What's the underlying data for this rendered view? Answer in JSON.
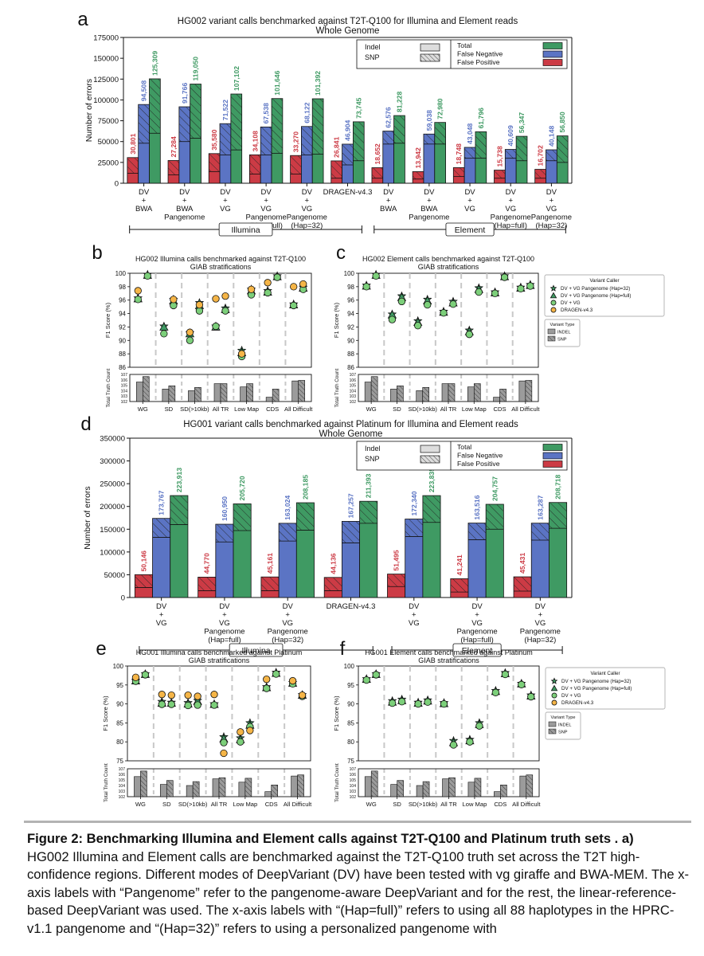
{
  "colors": {
    "fp": "#cc3b45",
    "fn": "#5b74c4",
    "total": "#3f9a63",
    "vgph": "#3f9a63",
    "vg": "#7ccf7a",
    "dragen": "#f5b547",
    "indel": "#9b9b9b",
    "snp": "#9b9b9b"
  },
  "caption": {
    "title": "Figure 2: Benchmarking Illumina and Element calls against T2T-Q100 and Platinum truth sets . a)",
    "body": "HG002 Illumina and Element calls are benchmarked against the T2T-Q100 truth set across the T2T high-confidence regions. Different modes of DeepVariant (DV) have been tested with vg giraffe and BWA-MEM. The x-axis labels with “Pangenome” refer to the pangenome-aware DeepVariant and for the rest, the linear-reference-based DeepVariant was used. The x-axis labels with “(Hap=full)” refers to using all 88 haplotypes in the HPRC-v1.1 pangenome and “(Hap=32)” refers to using a personalized pangenome with"
  },
  "chart_data": [
    {
      "panel": "a",
      "type": "bar",
      "title": "HG002 variant calls benchmarked against T2T-Q100 for Illumina and Element reads",
      "subtitle": "Whole Genome",
      "ylabel": "Number of errors",
      "ylim": [
        0,
        175000
      ],
      "yticks": [
        0,
        25000,
        50000,
        75000,
        100000,
        125000,
        150000,
        175000
      ],
      "categories": [
        [
          "DV",
          "+",
          "BWA"
        ],
        [
          "DV",
          "+",
          "BWA",
          "Pangenome"
        ],
        [
          "DV",
          "+",
          "VG"
        ],
        [
          "DV",
          "+",
          "VG",
          "Pangenome",
          "(Hap=full)"
        ],
        [
          "DV",
          "+",
          "VG",
          "Pangenome",
          "(Hap=32)"
        ],
        [
          "DRAGEN-v4.3"
        ],
        [
          "DV",
          "+",
          "BWA"
        ],
        [
          "DV",
          "+",
          "BWA",
          "Pangenome"
        ],
        [
          "DV",
          "+",
          "VG"
        ],
        [
          "DV",
          "+",
          "VG",
          "Pangenome",
          "(Hap=full)"
        ],
        [
          "DV",
          "+",
          "VG",
          "Pangenome",
          "(Hap=32)"
        ]
      ],
      "groups": [
        {
          "name": "Illumina",
          "from": 0,
          "to": 5
        },
        {
          "name": "Element",
          "from": 6,
          "to": 10
        }
      ],
      "legend": {
        "placement": "top-right",
        "types": [
          "Indel",
          "SNP"
        ],
        "metrics": [
          "Total",
          "False Negative",
          "False Positive"
        ]
      },
      "series": [
        {
          "name": "False Positive",
          "values": [
            30801,
            27284,
            35580,
            34108,
            33270,
            26841,
            18652,
            13942,
            18748,
            15738,
            16702
          ],
          "labels": [
            "30,801",
            "27,284",
            "35,580",
            "34,108",
            "33,270",
            "26,841",
            "18,652",
            "13,942",
            "18,748",
            "15,738",
            "16,702"
          ],
          "indel": [
            12000,
            10000,
            14000,
            11000,
            11000,
            6000,
            6000,
            5000,
            8000,
            6000,
            6000
          ]
        },
        {
          "name": "False Negative",
          "values": [
            94508,
            91766,
            71522,
            67538,
            68122,
            46904,
            62576,
            59038,
            43048,
            40609,
            40148
          ],
          "labels": [
            "94,508",
            "91,766",
            "71,522",
            "67,538",
            "68,122",
            "46,904",
            "62,576",
            "59,038",
            "43,048",
            "40,609",
            "40,148"
          ],
          "indel": [
            48000,
            50000,
            34000,
            34000,
            34000,
            22000,
            47000,
            47000,
            30000,
            30000,
            27000
          ]
        },
        {
          "name": "Total",
          "values": [
            125309,
            119050,
            107102,
            101646,
            101392,
            73745,
            81228,
            72980,
            61796,
            56347,
            56850
          ],
          "labels": [
            "125,309",
            "119,050",
            "107,102",
            "101,646",
            "101,392",
            "73,745",
            "81,228",
            "72,980",
            "61,796",
            "56,347",
            "56,850"
          ],
          "indel": [
            60000,
            54000,
            40000,
            36000,
            35000,
            27000,
            48000,
            47000,
            30000,
            27000,
            25000
          ]
        }
      ]
    },
    {
      "panel": "b",
      "type": "scatter",
      "title": "HG002 Illumina calls benchmarked against T2T-Q100",
      "subtitle": "GIAB stratifications",
      "ylabel": "F1 Score (%)",
      "ylim": [
        86,
        100
      ],
      "yticks": [
        86,
        88,
        90,
        92,
        94,
        96,
        98,
        100
      ],
      "categories": [
        "WG",
        "SD",
        "SD(>10kb)",
        "All TR",
        "Low Map",
        "CDS",
        "All Difficult"
      ],
      "series": [
        {
          "name": "DV + VG Pangenome (Hap=32)",
          "indel": [
            96.3,
            92.1,
            91.1,
            92.1,
            88.5,
            97.4,
            95.4
          ],
          "snp": [
            99.8,
            96.1,
            95.6,
            94.8,
            97.6,
            99.6,
            97.9
          ]
        },
        {
          "name": "DV + VG Pangenome (Hap=full)",
          "indel": [
            96.2,
            92.0,
            91.0,
            92.0,
            88.2,
            97.2,
            95.3
          ],
          "snp": [
            99.7,
            95.9,
            95.2,
            94.6,
            97.4,
            99.5,
            97.8
          ]
        },
        {
          "name": "DV + VG",
          "indel": [
            96.1,
            91.0,
            90.0,
            92.1,
            87.6,
            97.1,
            95.2
          ],
          "snp": [
            99.6,
            95.2,
            94.4,
            94.4,
            96.8,
            99.4,
            97.6
          ]
        },
        {
          "name": "DRAGEN-v4.3",
          "indel": [
            97.4,
            null,
            91.2,
            96.2,
            88.0,
            98.6,
            98.0
          ],
          "snp": [
            null,
            96.1,
            95.3,
            96.6,
            97.6,
            null,
            98.4
          ]
        }
      ],
      "truth_count": {
        "ylabel": "Total Truth Count",
        "yticks": [
          "10^2",
          "10^3",
          "10^4",
          "10^5",
          "10^6",
          "10^7"
        ],
        "indel_log10": [
          5.6,
          4.3,
          4.0,
          5.3,
          4.7,
          2.8,
          5.8
        ],
        "snp_log10": [
          6.6,
          4.9,
          4.6,
          5.3,
          5.3,
          4.3,
          5.9
        ]
      }
    },
    {
      "panel": "c",
      "type": "scatter",
      "title": "HG002 Element calls benchmarked against T2T-Q100",
      "subtitle": "GIAB stratifications",
      "ylabel": "F1 Score (%)",
      "ylim": [
        86,
        100
      ],
      "yticks": [
        86,
        88,
        90,
        92,
        94,
        96,
        98,
        100
      ],
      "categories": [
        "WG",
        "SD",
        "SD(>10kb)",
        "All TR",
        "Low Map",
        "CDS",
        "All Difficult"
      ],
      "legend": {
        "title": "Variant Caller",
        "type_title": "Variant Type",
        "types": [
          "INDEL",
          "SNP"
        ]
      },
      "series": [
        {
          "name": "DV + VG Pangenome (Hap=32)",
          "indel": [
            98.2,
            93.9,
            92.9,
            94.3,
            91.5,
            97.2,
            97.9
          ],
          "snp": [
            99.8,
            96.6,
            96.1,
            95.8,
            97.8,
            99.6,
            98.3
          ]
        },
        {
          "name": "DV + VG Pangenome (Hap=full)",
          "indel": [
            98.1,
            93.8,
            92.7,
            94.2,
            91.3,
            97.1,
            97.8
          ],
          "snp": [
            99.7,
            96.4,
            95.9,
            95.6,
            97.6,
            99.5,
            98.2
          ]
        },
        {
          "name": "DV + VG",
          "indel": [
            98.0,
            93.1,
            92.2,
            94.1,
            90.9,
            97.0,
            97.7
          ],
          "snp": [
            99.6,
            95.8,
            95.3,
            95.4,
            97.2,
            99.4,
            98.1
          ]
        },
        {
          "name": "DRAGEN-v4.3",
          "indel": [],
          "snp": []
        }
      ],
      "truth_count": {
        "ylabel": "Total Truth Count",
        "yticks": [
          "10^2",
          "10^3",
          "10^4",
          "10^5",
          "10^6",
          "10^7"
        ],
        "indel_log10": [
          5.6,
          4.3,
          4.0,
          5.3,
          4.7,
          2.8,
          5.8
        ],
        "snp_log10": [
          6.6,
          4.9,
          4.6,
          5.3,
          5.3,
          4.3,
          5.9
        ]
      }
    },
    {
      "panel": "d",
      "type": "bar",
      "title": "HG001 variant calls benchmarked against Platinum for Illumina and Element reads",
      "subtitle": "Whole Genome",
      "ylabel": "Number of errors",
      "ylim": [
        0,
        350000
      ],
      "yticks": [
        0,
        50000,
        100000,
        150000,
        200000,
        250000,
        300000,
        350000
      ],
      "categories": [
        [
          "DV",
          "+",
          "VG"
        ],
        [
          "DV",
          "+",
          "VG",
          "Pangenome",
          "(Hap=full)"
        ],
        [
          "DV",
          "+",
          "VG",
          "Pangenome",
          "(Hap=32)"
        ],
        [
          "DRAGEN-v4.3"
        ],
        [
          "DV",
          "+",
          "VG"
        ],
        [
          "DV",
          "+",
          "VG",
          "Pangenome",
          "(Hap=full)"
        ],
        [
          "DV",
          "+",
          "VG",
          "Pangenome",
          "(Hap=32)"
        ]
      ],
      "groups": [
        {
          "name": "Illumina",
          "from": 0,
          "to": 3
        },
        {
          "name": "Element",
          "from": 4,
          "to": 6
        }
      ],
      "legend": {
        "placement": "top-right",
        "types": [
          "Indel",
          "SNP"
        ],
        "metrics": [
          "Total",
          "False Negative",
          "False Positive"
        ]
      },
      "series": [
        {
          "name": "False Positive",
          "values": [
            50146,
            44770,
            45161,
            44136,
            51495,
            41241,
            45431
          ],
          "labels": [
            "50,146",
            "44,770",
            "45,161",
            "44,136",
            "51,495",
            "41,241",
            "45,431"
          ],
          "indel": [
            22000,
            15000,
            15000,
            15000,
            24000,
            12000,
            14000
          ]
        },
        {
          "name": "False Negative",
          "values": [
            173767,
            160950,
            163024,
            167257,
            172340,
            163516,
            163287
          ],
          "labels": [
            "173,767",
            "160,950",
            "163,024",
            "167,257",
            "172,340",
            "163,516",
            "163,287"
          ],
          "indel": [
            132000,
            122000,
            124000,
            120000,
            134000,
            127000,
            126000
          ]
        },
        {
          "name": "Total",
          "values": [
            223913,
            205720,
            208185,
            211393,
            223835,
            204757,
            208718
          ],
          "labels": [
            "223,913",
            "205,720",
            "208,185",
            "211,393",
            "223,835",
            "204,757",
            "208,718"
          ],
          "indel": [
            160000,
            147000,
            148000,
            163000,
            165000,
            150000,
            152000
          ]
        }
      ]
    },
    {
      "panel": "e",
      "type": "scatter",
      "title": "HG001 Illumina calls benchmarked against Platinum",
      "subtitle": "GIAB stratifications",
      "ylabel": "F1 Score (%)",
      "ylim": [
        75,
        100
      ],
      "yticks": [
        75,
        80,
        85,
        90,
        95,
        100
      ],
      "categories": [
        "WG",
        "SD",
        "SD(>10kb)",
        "All TR",
        "Low Map",
        "CDS",
        "All Difficult"
      ],
      "series": [
        {
          "name": "DV + VG Pangenome (Hap=32)",
          "indel": [
            96.2,
            90.6,
            90.3,
            90.0,
            81.0,
            94.5,
            95.6
          ],
          "snp": [
            97.9,
            90.4,
            90.9,
            81.3,
            85.0,
            98.3,
            92.4
          ]
        },
        {
          "name": "DV + VG Pangenome (Hap=full)",
          "indel": [
            96.1,
            90.2,
            90.0,
            89.9,
            80.6,
            94.3,
            95.5
          ],
          "snp": [
            97.8,
            90.2,
            90.7,
            80.8,
            84.4,
            98.1,
            92.3
          ]
        },
        {
          "name": "DV + VG",
          "indel": [
            96.0,
            89.9,
            89.6,
            89.7,
            80.0,
            94.1,
            95.3
          ],
          "snp": [
            97.7,
            89.9,
            89.7,
            79.8,
            84.0,
            97.9,
            92.0
          ]
        },
        {
          "name": "DRAGEN-v4.3",
          "indel": [
            97.0,
            92.5,
            92.3,
            92.5,
            82.6,
            96.5,
            96.1
          ],
          "snp": [
            null,
            92.3,
            92.0,
            77.0,
            83.0,
            null,
            92.3
          ]
        }
      ],
      "truth_count": {
        "ylabel": "Total Truth Count",
        "yticks": [
          "10^2",
          "10^3",
          "10^4",
          "10^5",
          "10^6",
          "10^7"
        ],
        "indel_log10": [
          5.6,
          4.2,
          4.0,
          5.2,
          4.6,
          2.9,
          5.7
        ],
        "snp_log10": [
          6.6,
          4.9,
          4.7,
          5.4,
          5.3,
          4.1,
          5.9
        ]
      }
    },
    {
      "panel": "f",
      "type": "scatter",
      "title": "HG001 Element calls benchmarked against Platinum",
      "subtitle": "GIAB stratifications",
      "ylabel": "F1 Score (%)",
      "ylim": [
        75,
        100
      ],
      "yticks": [
        75,
        80,
        85,
        90,
        95,
        100
      ],
      "categories": [
        "WG",
        "SD",
        "SD(>10kb)",
        "All TR",
        "Low Map",
        "CDS",
        "All Difficult"
      ],
      "legend": {
        "title": "Variant Caller",
        "type_title": "Variant Type",
        "types": [
          "INDEL",
          "SNP"
        ]
      },
      "series": [
        {
          "name": "DV + VG Pangenome (Hap=32)",
          "indel": [
            96.6,
            90.8,
            90.4,
            90.3,
            80.6,
            93.5,
            95.4
          ],
          "snp": [
            97.9,
            91.2,
            91.0,
            80.3,
            85.0,
            98.2,
            92.3
          ]
        },
        {
          "name": "DV + VG Pangenome (Hap=full)",
          "indel": [
            96.5,
            90.5,
            90.2,
            90.1,
            80.3,
            93.3,
            95.3
          ],
          "snp": [
            97.8,
            90.9,
            90.8,
            79.8,
            84.6,
            98.0,
            92.1
          ]
        },
        {
          "name": "DV + VG",
          "indel": [
            96.3,
            90.2,
            90.0,
            90.0,
            80.0,
            93.0,
            95.1
          ],
          "snp": [
            97.7,
            90.6,
            90.5,
            79.2,
            84.2,
            97.8,
            91.9
          ]
        },
        {
          "name": "DRAGEN-v4.3",
          "indel": [],
          "snp": []
        }
      ],
      "truth_count": {
        "ylabel": "Total Truth Count",
        "yticks": [
          "10^2",
          "10^3",
          "10^4",
          "10^5",
          "10^6",
          "10^7"
        ],
        "indel_log10": [
          5.6,
          4.2,
          4.0,
          5.2,
          4.6,
          2.9,
          5.7
        ],
        "snp_log10": [
          6.6,
          4.9,
          4.7,
          5.4,
          5.3,
          4.1,
          5.9
        ]
      }
    }
  ]
}
